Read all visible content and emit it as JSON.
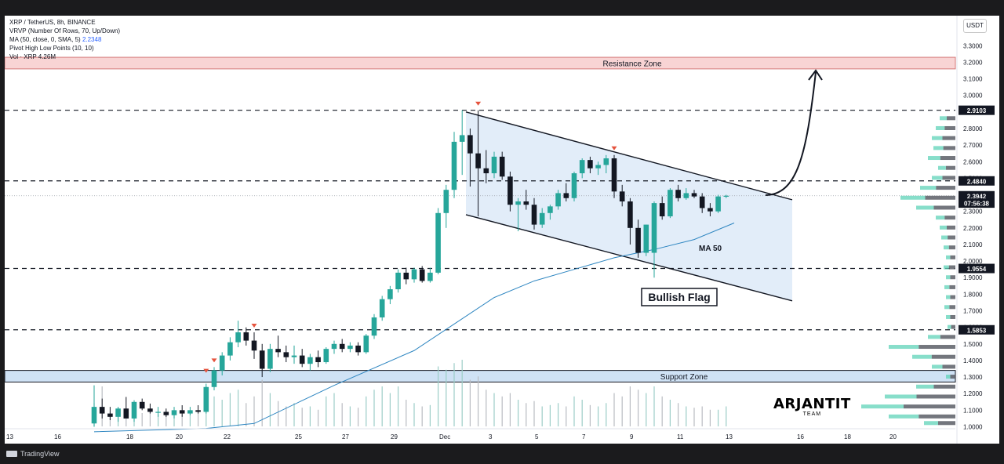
{
  "indicators": {
    "line1": "XRP / TetherUS, 8h, BINANCE",
    "line2": "VRVP (Number Of Rows, 70, Up/Down)",
    "line3_label": "MA (50, close, 0, SMA, 5)",
    "line3_value": "2.2348",
    "line4": "Pivot High Low Points (10, 10)",
    "line5": "Vol · XRP  4.26M"
  },
  "currency": "USDT",
  "brand": {
    "name": "ARJANTIT",
    "sub": "TEAM"
  },
  "footer": {
    "logo": "TradingView"
  },
  "colors": {
    "up": "#26a69a",
    "down": "#131722",
    "ma": "#2e86c1",
    "resistance_fill": "#f8d4d4",
    "support_fill": "#cfe2f5",
    "channel_fill": "#ddeaf8",
    "pivot": "#e5533d"
  },
  "chart_data": {
    "type": "candlestick",
    "title": "XRP / TetherUS, 8h, BINANCE",
    "x_tick_labels": [
      "13",
      "16",
      "18",
      "20",
      "22",
      "25",
      "27",
      "29",
      "Dec",
      "3",
      "5",
      "7",
      "9",
      "11",
      "13",
      "16",
      "18",
      "20"
    ],
    "y_tick_labels": [
      "1.0000",
      "1.1000",
      "1.2000",
      "1.3000",
      "1.4000",
      "1.5000",
      "1.6000",
      "1.7000",
      "1.8000",
      "1.9000",
      "2.0000",
      "2.1000",
      "2.2000",
      "2.3000",
      "2.4000",
      "2.5000",
      "2.6000",
      "2.7000",
      "2.8000",
      "2.9000",
      "3.0000",
      "3.1000",
      "3.2000",
      "3.3000"
    ],
    "ylim": [
      1.0,
      3.3
    ],
    "price_labels": [
      {
        "text": "2.9103",
        "value": 2.9103,
        "style": "dark"
      },
      {
        "text": "2.4840",
        "value": 2.484,
        "style": "dark"
      },
      {
        "text": "2.3942",
        "value": 2.3942,
        "style": "dark"
      },
      {
        "text": "07:56:38",
        "value": 2.35,
        "style": "dark"
      },
      {
        "text": "1.9554",
        "value": 1.9554,
        "style": "dark"
      },
      {
        "text": "1.5853",
        "value": 1.5853,
        "style": "dark"
      }
    ],
    "horizontal_levels": [
      2.9103,
      2.484,
      1.9554,
      1.5853
    ],
    "resistance_zone": {
      "label": "Resistance Zone",
      "from": 3.16,
      "to": 3.23
    },
    "support_zone": {
      "label": "Support Zone",
      "from": 1.27,
      "to": 1.34
    },
    "annotations": {
      "bullish_flag": "Bullish Flag",
      "ma_label": "MA 50"
    },
    "channel": {
      "upper": [
        [
          2.9,
          0
        ],
        [
          2.37,
          1
        ]
      ],
      "lower": [
        [
          2.28,
          0
        ],
        [
          1.76,
          1
        ]
      ]
    },
    "candles": [
      {
        "o": 1.02,
        "h": 1.25,
        "l": 1.0,
        "c": 1.12
      },
      {
        "o": 1.12,
        "h": 1.17,
        "l": 1.05,
        "c": 1.08
      },
      {
        "o": 1.08,
        "h": 1.12,
        "l": 1.04,
        "c": 1.06
      },
      {
        "o": 1.06,
        "h": 1.12,
        "l": 1.03,
        "c": 1.11
      },
      {
        "o": 1.11,
        "h": 1.18,
        "l": 1.07,
        "c": 1.05
      },
      {
        "o": 1.05,
        "h": 1.16,
        "l": 1.03,
        "c": 1.15
      },
      {
        "o": 1.15,
        "h": 1.17,
        "l": 1.1,
        "c": 1.11
      },
      {
        "o": 1.11,
        "h": 1.14,
        "l": 1.08,
        "c": 1.09
      },
      {
        "o": 1.09,
        "h": 1.12,
        "l": 1.06,
        "c": 1.09
      },
      {
        "o": 1.09,
        "h": 1.11,
        "l": 1.06,
        "c": 1.07
      },
      {
        "o": 1.07,
        "h": 1.12,
        "l": 1.05,
        "c": 1.1
      },
      {
        "o": 1.1,
        "h": 1.13,
        "l": 1.06,
        "c": 1.08
      },
      {
        "o": 1.08,
        "h": 1.12,
        "l": 1.07,
        "c": 1.1
      },
      {
        "o": 1.1,
        "h": 1.13,
        "l": 1.08,
        "c": 1.09
      },
      {
        "o": 1.09,
        "h": 1.26,
        "l": 1.08,
        "c": 1.24
      },
      {
        "o": 1.24,
        "h": 1.36,
        "l": 1.22,
        "c": 1.34
      },
      {
        "o": 1.34,
        "h": 1.45,
        "l": 1.31,
        "c": 1.43
      },
      {
        "o": 1.43,
        "h": 1.54,
        "l": 1.4,
        "c": 1.51
      },
      {
        "o": 1.51,
        "h": 1.64,
        "l": 1.48,
        "c": 1.57
      },
      {
        "o": 1.57,
        "h": 1.6,
        "l": 1.49,
        "c": 1.52
      },
      {
        "o": 1.52,
        "h": 1.57,
        "l": 1.41,
        "c": 1.46
      },
      {
        "o": 1.46,
        "h": 1.5,
        "l": 1.3,
        "c": 1.35
      },
      {
        "o": 1.35,
        "h": 1.5,
        "l": 1.33,
        "c": 1.47
      },
      {
        "o": 1.47,
        "h": 1.55,
        "l": 1.42,
        "c": 1.45
      },
      {
        "o": 1.45,
        "h": 1.49,
        "l": 1.39,
        "c": 1.42
      },
      {
        "o": 1.42,
        "h": 1.49,
        "l": 1.38,
        "c": 1.43
      },
      {
        "o": 1.43,
        "h": 1.47,
        "l": 1.36,
        "c": 1.38
      },
      {
        "o": 1.38,
        "h": 1.44,
        "l": 1.34,
        "c": 1.42
      },
      {
        "o": 1.42,
        "h": 1.46,
        "l": 1.36,
        "c": 1.39
      },
      {
        "o": 1.39,
        "h": 1.48,
        "l": 1.38,
        "c": 1.47
      },
      {
        "o": 1.47,
        "h": 1.52,
        "l": 1.44,
        "c": 1.5
      },
      {
        "o": 1.5,
        "h": 1.53,
        "l": 1.45,
        "c": 1.47
      },
      {
        "o": 1.47,
        "h": 1.51,
        "l": 1.45,
        "c": 1.49
      },
      {
        "o": 1.49,
        "h": 1.51,
        "l": 1.43,
        "c": 1.45
      },
      {
        "o": 1.45,
        "h": 1.56,
        "l": 1.44,
        "c": 1.55
      },
      {
        "o": 1.55,
        "h": 1.68,
        "l": 1.53,
        "c": 1.66
      },
      {
        "o": 1.66,
        "h": 1.79,
        "l": 1.64,
        "c": 1.77
      },
      {
        "o": 1.77,
        "h": 1.85,
        "l": 1.74,
        "c": 1.83
      },
      {
        "o": 1.83,
        "h": 1.95,
        "l": 1.81,
        "c": 1.93
      },
      {
        "o": 1.93,
        "h": 1.96,
        "l": 1.86,
        "c": 1.89
      },
      {
        "o": 1.89,
        "h": 1.96,
        "l": 1.87,
        "c": 1.95
      },
      {
        "o": 1.95,
        "h": 1.97,
        "l": 1.87,
        "c": 1.88
      },
      {
        "o": 1.88,
        "h": 1.96,
        "l": 1.87,
        "c": 1.93
      },
      {
        "o": 1.93,
        "h": 2.32,
        "l": 1.92,
        "c": 2.29
      },
      {
        "o": 2.29,
        "h": 2.46,
        "l": 2.2,
        "c": 2.43
      },
      {
        "o": 2.43,
        "h": 2.78,
        "l": 2.38,
        "c": 2.72
      },
      {
        "o": 2.72,
        "h": 2.91,
        "l": 2.52,
        "c": 2.76
      },
      {
        "o": 2.76,
        "h": 2.8,
        "l": 2.45,
        "c": 2.65
      },
      {
        "o": 2.65,
        "h": 2.91,
        "l": 2.27,
        "c": 2.56
      },
      {
        "o": 2.56,
        "h": 2.67,
        "l": 2.47,
        "c": 2.53
      },
      {
        "o": 2.53,
        "h": 2.66,
        "l": 2.5,
        "c": 2.63
      },
      {
        "o": 2.63,
        "h": 2.66,
        "l": 2.49,
        "c": 2.51
      },
      {
        "o": 2.51,
        "h": 2.54,
        "l": 2.3,
        "c": 2.34
      },
      {
        "o": 2.34,
        "h": 2.38,
        "l": 2.18,
        "c": 2.36
      },
      {
        "o": 2.36,
        "h": 2.43,
        "l": 2.31,
        "c": 2.34
      },
      {
        "o": 2.34,
        "h": 2.38,
        "l": 2.19,
        "c": 2.22
      },
      {
        "o": 2.22,
        "h": 2.32,
        "l": 2.2,
        "c": 2.29
      },
      {
        "o": 2.29,
        "h": 2.34,
        "l": 2.25,
        "c": 2.33
      },
      {
        "o": 2.33,
        "h": 2.43,
        "l": 2.31,
        "c": 2.41
      },
      {
        "o": 2.41,
        "h": 2.47,
        "l": 2.36,
        "c": 2.38
      },
      {
        "o": 2.38,
        "h": 2.54,
        "l": 2.36,
        "c": 2.53
      },
      {
        "o": 2.53,
        "h": 2.62,
        "l": 2.5,
        "c": 2.61
      },
      {
        "o": 2.61,
        "h": 2.63,
        "l": 2.53,
        "c": 2.56
      },
      {
        "o": 2.56,
        "h": 2.6,
        "l": 2.52,
        "c": 2.58
      },
      {
        "o": 2.58,
        "h": 2.64,
        "l": 2.53,
        "c": 2.62
      },
      {
        "o": 2.62,
        "h": 2.64,
        "l": 2.38,
        "c": 2.42
      },
      {
        "o": 2.42,
        "h": 2.46,
        "l": 2.33,
        "c": 2.36
      },
      {
        "o": 2.36,
        "h": 2.38,
        "l": 2.1,
        "c": 2.2
      },
      {
        "o": 2.2,
        "h": 2.25,
        "l": 2.02,
        "c": 2.05
      },
      {
        "o": 2.05,
        "h": 2.22,
        "l": 2.03,
        "c": 2.22
      },
      {
        "o": 2.05,
        "h": 2.36,
        "l": 1.9,
        "c": 2.35
      },
      {
        "o": 2.35,
        "h": 2.39,
        "l": 2.25,
        "c": 2.27
      },
      {
        "o": 2.27,
        "h": 2.44,
        "l": 2.26,
        "c": 2.43
      },
      {
        "o": 2.43,
        "h": 2.46,
        "l": 2.36,
        "c": 2.38
      },
      {
        "o": 2.38,
        "h": 2.44,
        "l": 2.37,
        "c": 2.41
      },
      {
        "o": 2.41,
        "h": 2.43,
        "l": 2.38,
        "c": 2.39
      },
      {
        "o": 2.39,
        "h": 2.41,
        "l": 2.29,
        "c": 2.32
      },
      {
        "o": 2.32,
        "h": 2.35,
        "l": 2.27,
        "c": 2.3
      },
      {
        "o": 2.3,
        "h": 2.4,
        "l": 2.29,
        "c": 2.39
      },
      {
        "o": 2.39,
        "h": 2.4,
        "l": 2.38,
        "c": 2.3942
      }
    ],
    "ma50": [
      [
        0,
        0.97
      ],
      [
        14,
        0.99
      ],
      [
        20,
        1.02
      ],
      [
        30,
        1.25
      ],
      [
        40,
        1.46
      ],
      [
        45,
        1.62
      ],
      [
        50,
        1.78
      ],
      [
        55,
        1.88
      ],
      [
        60,
        1.95
      ],
      [
        65,
        2.02
      ],
      [
        70,
        2.07
      ],
      [
        75,
        2.13
      ],
      [
        80,
        2.23
      ]
    ],
    "volume": [
      0.35,
      0.6,
      0.22,
      0.28,
      0.25,
      0.32,
      0.2,
      0.24,
      0.18,
      0.2,
      0.22,
      0.18,
      0.2,
      0.22,
      0.6,
      0.45,
      0.4,
      0.5,
      0.55,
      0.35,
      0.45,
      0.7,
      0.5,
      0.38,
      0.3,
      0.35,
      0.28,
      0.3,
      0.25,
      0.45,
      0.5,
      0.35,
      0.3,
      0.28,
      0.45,
      0.55,
      0.6,
      0.5,
      0.6,
      0.4,
      0.35,
      0.3,
      0.32,
      0.9,
      0.85,
      0.95,
      1.0,
      0.7,
      0.75,
      0.55,
      0.5,
      0.45,
      0.5,
      0.4,
      0.35,
      0.38,
      0.3,
      0.32,
      0.35,
      0.3,
      0.45,
      0.4,
      0.32,
      0.3,
      0.35,
      0.5,
      0.45,
      0.6,
      0.55,
      0.5,
      0.6,
      0.45,
      0.4,
      0.35,
      0.3,
      0.28,
      0.3,
      0.25,
      0.25,
      0.3,
      0.18
    ],
    "pivot_highs": [
      15,
      20,
      48,
      65
    ],
    "pivot_lows": [
      14
    ]
  }
}
